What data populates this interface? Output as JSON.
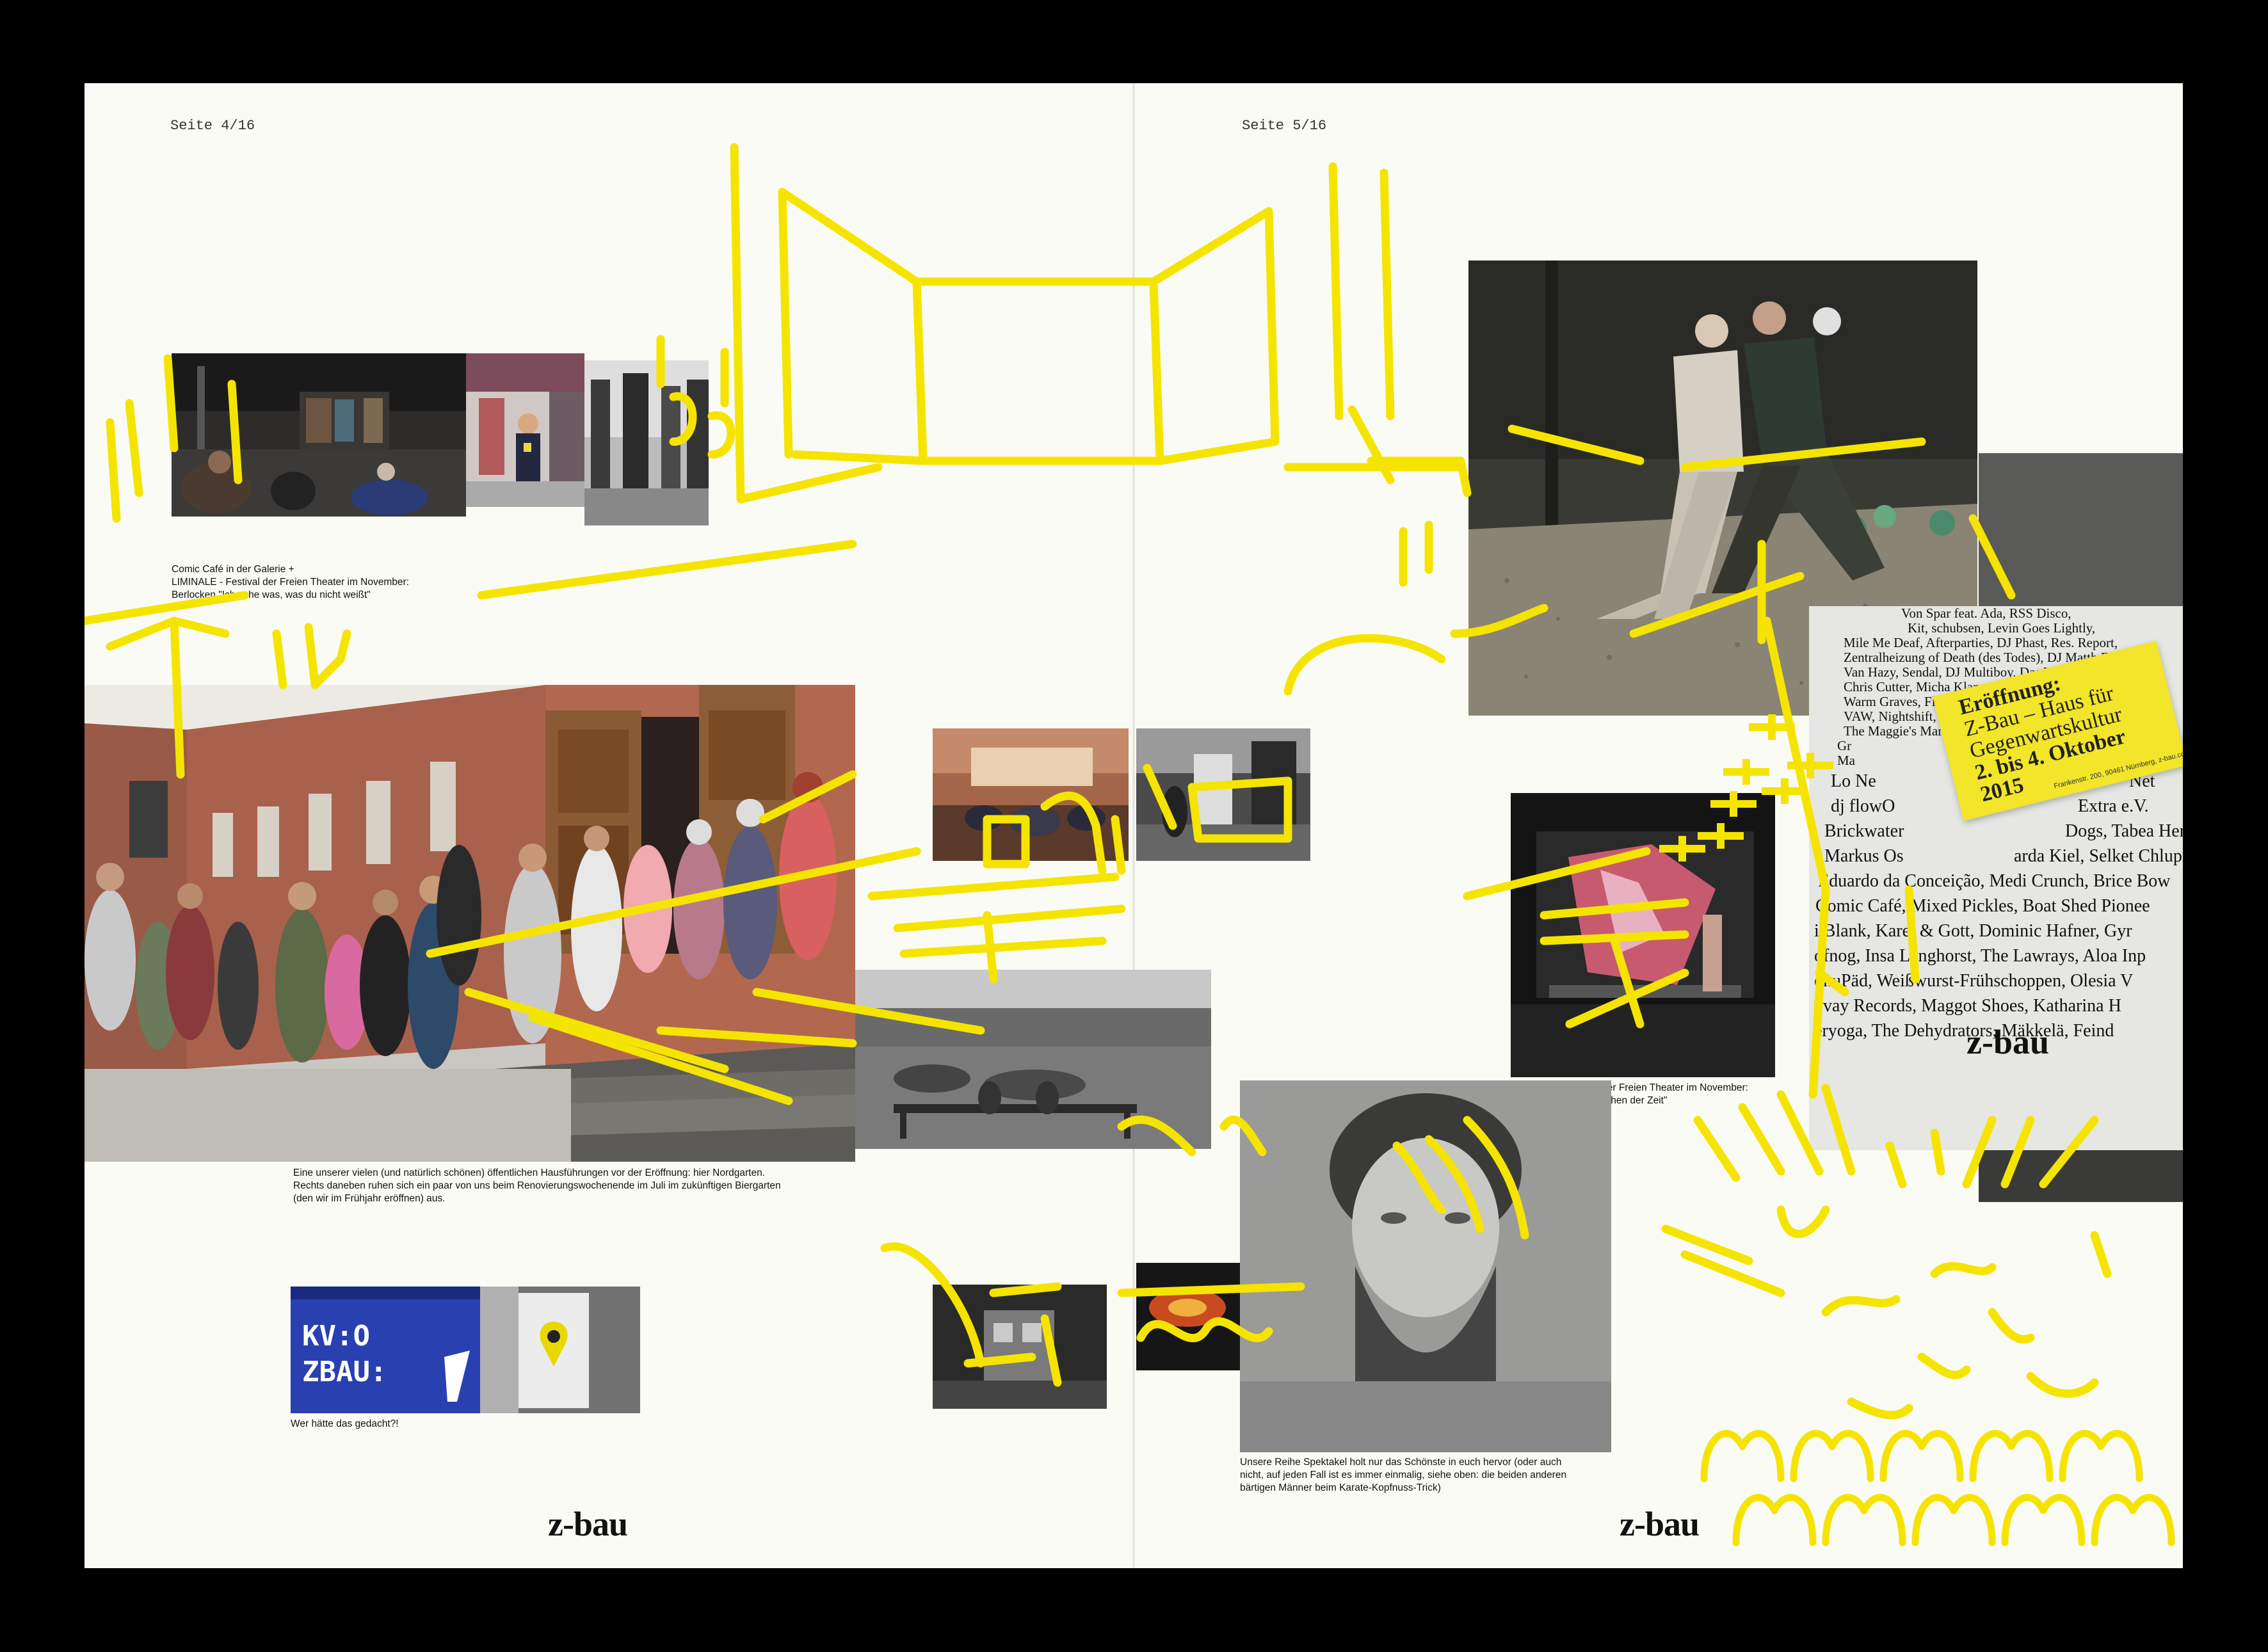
{
  "pages": {
    "left_number": "Seite 4/16",
    "right_number": "Seite 5/16",
    "logo": "z-bau"
  },
  "captions": {
    "comic_cafe": [
      "Comic Café in der Galerie +",
      "LIMINALE - Festival der Freien Theater im November:",
      "Berlocken \"Ich sehe was, was du nicht weißt\""
    ],
    "hausfuehrung": [
      "Eine unserer vielen (und natürlich schönen) öffentlichen Hausführungen vor der Eröffnung: hier Nordgarten.",
      "Rechts daneben ruhen sich ein paar von uns beim Renovierungswochenende  im Juli im zukünftigen Biergarten",
      "(den wir im Frühjahr eröffnen) aus."
    ],
    "wer_haette": [
      "Wer hätte das gedacht?!"
    ],
    "rgb_ensemble": [
      "LIMINALE - Festival der Freien Theater im November:",
      "RGB Ensemble \"Zwischen der Zeit\""
    ],
    "spektakel": [
      "Unsere Reihe Spektakel holt nur das Schönste in euch hervor (oder auch",
      "nicht, auf jeden Fall ist es immer einmalig, siehe oben: die beiden anderen",
      "bärtigen Männer beim Karate-Kopfnuss-Trick)"
    ]
  },
  "sticker": {
    "line1": "Eröffnung:",
    "line2": "Z-Bau – Haus für",
    "line3": "Gegenwartskultur",
    "line4": "2. bis 4. Oktober",
    "line5": "2015",
    "small": "Frankenstr. 200, 90461 Nürnberg, z-bau.com"
  },
  "poster": {
    "lines": [
      "Von Spar feat. Ada, RSS Disco,",
      "Kit, schubsen, Levin Goes Lightly,",
      "Mile Me Deaf, Afterparties, DJ Phast, Res. Report,",
      "Zentralheizung of Death (des Todes), DJ Matth Fame,",
      "Van Hazy, Sendal, DJ Multiboy, Das Weiße Pferd,",
      "Chris Cutter, Micha Klang, The Aeolian Orchestra,",
      "Warm Graves, Flo Satz, The Swaggers, Wenrich,",
      "VAW, Nightshift, Ex-Rapper, Laura Sk.,",
      "The Maggie's Marshmallows, ORBITRONG,",
      "Gr",
      "Ma",
      "Lo Ne",
      "dj flowO",
      "Brickwater",
      "Markus Os",
      "Eduardo da Conceição, Medi Crunch, Brice Bow",
      "Comic Café, Mixed Pickles, Boat Shed Pionee",
      "i Blank, Karel & Gott, Dominic Hafner, Gyr",
      "ofnog, Insa Langhorst, The Lawrays, Aloa Inp",
      "okuPäd, Weißwurst-Frühschoppen, Olesia V",
      "vvay Records, Maggot Shoes, Katharina H",
      "eryoga, The Dehydrators, Mäkkelä, Feind"
    ],
    "right_frag": [
      "Net",
      "Extra e.V.",
      "Dogs, Tabea Her",
      "arda Kiel, Selket Chlupk"
    ],
    "logo": "z-bau"
  },
  "stencils": {
    "sign_line1": "KV:O",
    "sign_line2": "ZBAU:"
  },
  "colors": {
    "paper": "#fbfbf6",
    "marker_yellow": "#f5e400",
    "sticker_yellow": "#f2e52a",
    "sign_blue": "#2336a8"
  }
}
